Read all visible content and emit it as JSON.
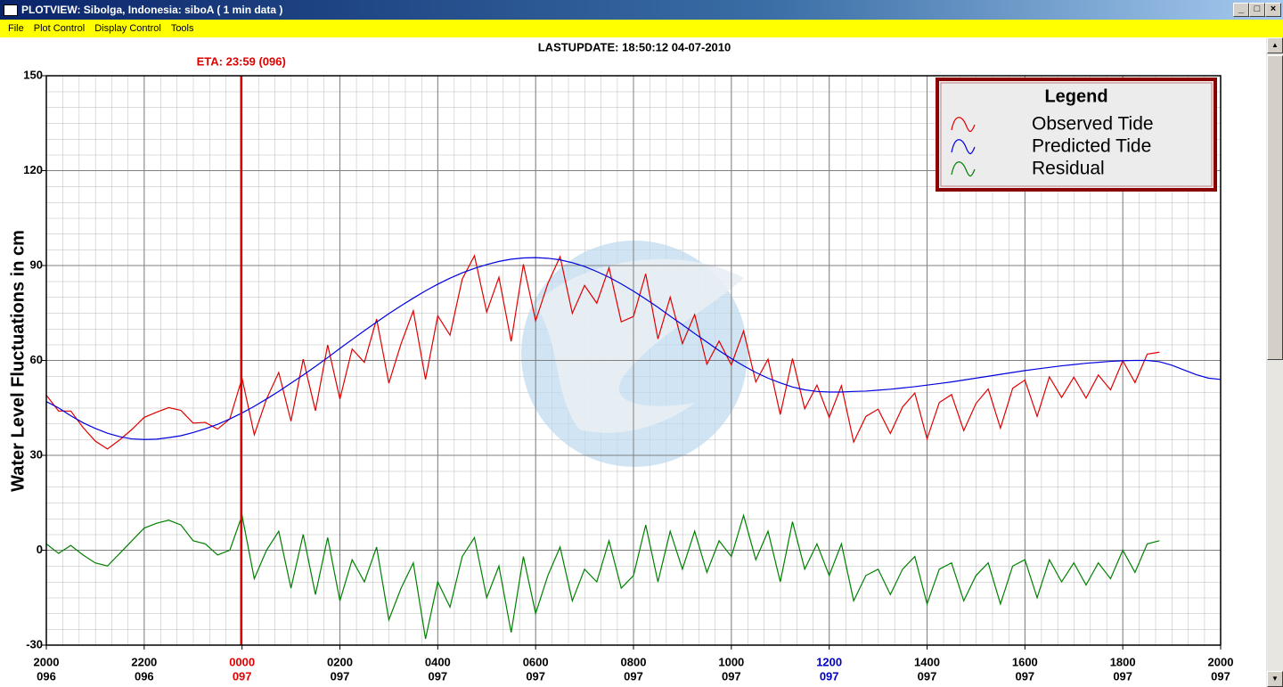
{
  "window": {
    "title": "PLOTVIEW:  Sibolga, Indonesia: siboA ( 1 min data )"
  },
  "menu": [
    "File",
    "Plot Control",
    "Display Control",
    "Tools"
  ],
  "chart_data": {
    "type": "line",
    "title": "LASTUPDATE: 18:50:12  04-07-2010",
    "y_label": "Water Level Fluctuations in cm",
    "annotations": [
      {
        "text": "ETA: 23:59 (096)",
        "x": 3.983,
        "color": "#e00000"
      }
    ],
    "x": [
      0,
      0.25,
      0.5,
      0.75,
      1,
      1.25,
      1.5,
      1.75,
      2,
      2.25,
      2.5,
      2.75,
      3,
      3.25,
      3.5,
      3.75,
      4,
      4.25,
      4.5,
      4.75,
      5,
      5.25,
      5.5,
      5.75,
      6,
      6.25,
      6.5,
      6.75,
      7,
      7.25,
      7.5,
      7.75,
      8,
      8.25,
      8.5,
      8.75,
      9,
      9.25,
      9.5,
      9.75,
      10,
      10.25,
      10.5,
      10.75,
      11,
      11.25,
      11.5,
      11.75,
      12,
      12.25,
      12.5,
      12.75,
      13,
      13.25,
      13.5,
      13.75,
      14,
      14.25,
      14.5,
      14.75,
      15,
      15.25,
      15.5,
      15.75,
      16,
      16.25,
      16.5,
      16.75,
      17,
      17.25,
      17.5,
      17.75,
      18,
      18.25,
      18.5,
      18.75,
      19,
      19.25,
      19.5,
      19.75,
      20,
      20.25,
      20.5,
      20.75,
      21,
      21.25,
      21.5,
      21.75,
      22,
      22.25,
      22.5,
      22.75,
      23,
      23.25,
      23.5,
      23.75,
      24
    ],
    "xlim": [
      0,
      24
    ],
    "xticks": [
      {
        "value": 0,
        "label": "2000"
      },
      {
        "value": 2,
        "label": "2200"
      },
      {
        "value": 4,
        "label": "0000"
      },
      {
        "value": 6,
        "label": "0200"
      },
      {
        "value": 8,
        "label": "0400"
      },
      {
        "value": 10,
        "label": "0600"
      },
      {
        "value": 12,
        "label": "0800"
      },
      {
        "value": 14,
        "label": "1000"
      },
      {
        "value": 16,
        "label": "1200"
      },
      {
        "value": 18,
        "label": "1400"
      },
      {
        "value": 20,
        "label": "1600"
      },
      {
        "value": 22,
        "label": "1800"
      },
      {
        "value": 24,
        "label": "2000"
      }
    ],
    "xtick_sublabels": [
      "096",
      "096",
      "097",
      "097",
      "097",
      "097",
      "097",
      "097",
      "097",
      "097",
      "097",
      "097",
      "097"
    ],
    "xtick_label_colors": [
      "#000000",
      "#000000",
      "#e00000",
      "#000000",
      "#000000",
      "#000000",
      "#000000",
      "#000000",
      "#0000c0",
      "#000000",
      "#000000",
      "#000000",
      "#000000"
    ],
    "ylim": [
      -30,
      150
    ],
    "yticks": [
      -30,
      0,
      30,
      60,
      90,
      120,
      150
    ],
    "grid": true,
    "legend": {
      "title": "Legend",
      "position": "upper right"
    },
    "series": [
      {
        "name": "Observed Tide",
        "color": "#e00000",
        "values": [
          49,
          44,
          44,
          38.8,
          34.5,
          32,
          34.9,
          38.2,
          42,
          43.6,
          45.1,
          44.2,
          40.2,
          40.4,
          38.3,
          41.5,
          54.4,
          36.5,
          47.8,
          56.2,
          40.8,
          60.4,
          44.1,
          64.9,
          47.8,
          63.6,
          59.4,
          73.1,
          52.8,
          65.3,
          75.7,
          54,
          74.1,
          68,
          85.7,
          93.1,
          75.3,
          86.3,
          66,
          90.4,
          72.5,
          84.3,
          92.8,
          74.9,
          83.7,
          78.1,
          89.3,
          72.2,
          73.9,
          87.4,
          66.8,
          80,
          65.3,
          74.5,
          58.8,
          66.1,
          58.6,
          69.3,
          53.2,
          60.4,
          42.9,
          60.6,
          44.7,
          52.2,
          42,
          52,
          34.2,
          42.3,
          44.6,
          36.9,
          45.3,
          49.7,
          35.2,
          46.7,
          49.2,
          37.8,
          46.4,
          51,
          38.6,
          51.2,
          53.8,
          42.3,
          54.8,
          48.3,
          54.7,
          48.1,
          55.4,
          50.7,
          59.9,
          53,
          62,
          62.6,
          null,
          null,
          null,
          null,
          null
        ]
      },
      {
        "name": "Predicted Tide",
        "color": "#0000e0",
        "values": [
          47,
          45,
          42.5,
          40.3,
          38.5,
          37,
          35.9,
          35.2,
          35,
          35.1,
          35.6,
          36.2,
          37.2,
          38.4,
          39.8,
          41.5,
          43.4,
          45.5,
          47.8,
          50.2,
          52.8,
          55.4,
          58.1,
          60.9,
          63.8,
          66.6,
          69.4,
          72.1,
          74.8,
          77.3,
          79.7,
          82,
          84.1,
          86,
          87.7,
          89.1,
          90.3,
          91.3,
          92,
          92.4,
          92.5,
          92.3,
          91.8,
          90.9,
          89.7,
          88.1,
          86.3,
          84.2,
          81.9,
          79.4,
          76.8,
          74,
          71.3,
          68.5,
          65.8,
          63.1,
          60.6,
          58.3,
          56.2,
          54.4,
          52.9,
          51.6,
          50.7,
          50.2,
          50,
          50,
          50.2,
          50.3,
          50.6,
          50.9,
          51.3,
          51.7,
          52.2,
          52.7,
          53.2,
          53.8,
          54.4,
          55,
          55.6,
          56.2,
          56.8,
          57.3,
          57.8,
          58.3,
          58.7,
          59.1,
          59.4,
          59.7,
          59.9,
          60,
          60,
          59.6,
          58.5,
          57,
          55.5,
          54.4,
          54
        ]
      },
      {
        "name": "Residual",
        "color": "#008000",
        "values": [
          2,
          -1,
          1.5,
          -1.5,
          -4,
          -5,
          -1,
          3,
          7,
          8.5,
          9.5,
          8,
          3,
          2,
          -1.5,
          0,
          11,
          -9,
          0,
          6,
          -12,
          5,
          -14,
          4,
          -16,
          -3,
          -10,
          1,
          -22,
          -12,
          -4,
          -28,
          -10,
          -18,
          -2,
          4,
          -15,
          -5,
          -26,
          -2,
          -20,
          -8,
          1,
          -16,
          -6,
          -10,
          3,
          -12,
          -8,
          8,
          -10,
          6,
          -6,
          6,
          -7,
          3,
          -2,
          11,
          -3,
          6,
          -10,
          9,
          -6,
          2,
          -8,
          2,
          -16,
          -8,
          -6,
          -14,
          -6,
          -2,
          -17,
          -6,
          -4,
          -16,
          -8,
          -4,
          -17,
          -5,
          -3,
          -15,
          -3,
          -10,
          -4,
          -11,
          -4,
          -9,
          0,
          -7,
          2,
          3,
          null,
          null,
          null,
          null,
          null
        ]
      }
    ]
  }
}
